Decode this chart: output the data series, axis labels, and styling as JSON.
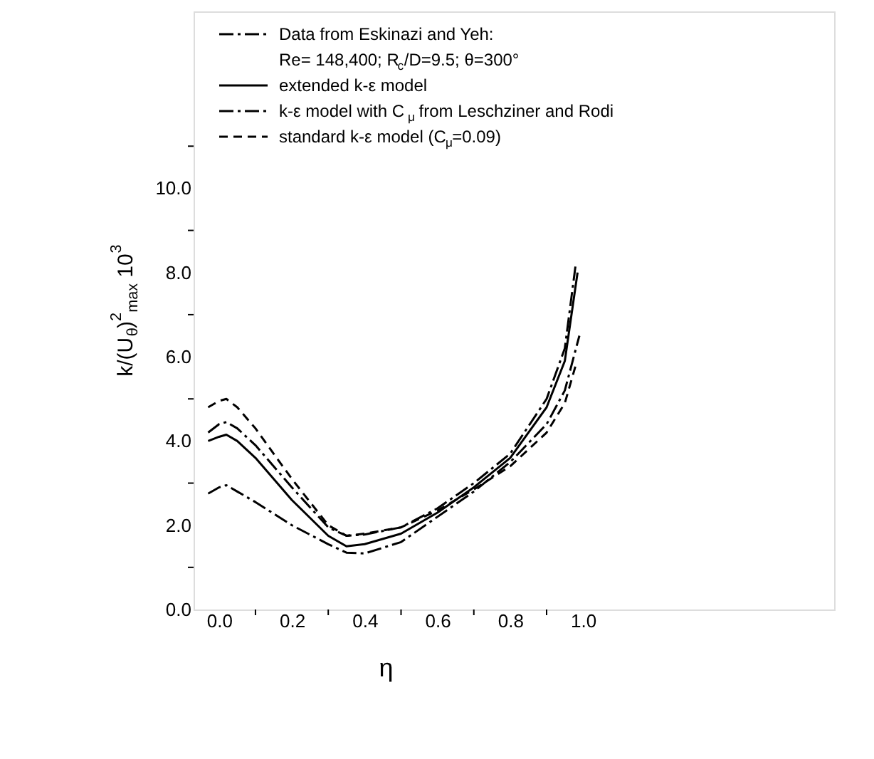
{
  "chart_data": {
    "type": "line",
    "xlabel": "η",
    "ylabel": "k/(U$_{θ}$)$^{2}$$_{max}$ 10$^{3}$",
    "xlim": [
      -0.07,
      1.69
    ],
    "ylim": [
      0,
      14.2
    ],
    "xticks": [
      {
        "value": 0,
        "label": "0.0"
      },
      {
        "value": 0.1,
        "label": null
      },
      {
        "value": 0.2,
        "label": "0.2"
      },
      {
        "value": 0.3,
        "label": null
      },
      {
        "value": 0.4,
        "label": "0.4"
      },
      {
        "value": 0.5,
        "label": null
      },
      {
        "value": 0.6,
        "label": "0.6"
      },
      {
        "value": 0.7,
        "label": null
      },
      {
        "value": 0.8,
        "label": "0.8"
      },
      {
        "value": 0.9,
        "label": null
      },
      {
        "value": 1.0,
        "label": "1.0"
      }
    ],
    "yticks": [
      {
        "value": 0,
        "label": "0.0"
      },
      {
        "value": 1,
        "label": null
      },
      {
        "value": 2,
        "label": "2.0"
      },
      {
        "value": 3,
        "label": null
      },
      {
        "value": 4,
        "label": "4.0"
      },
      {
        "value": 5,
        "label": null
      },
      {
        "value": 6,
        "label": "6.0"
      },
      {
        "value": 7,
        "label": null
      },
      {
        "value": 8,
        "label": "8.0"
      },
      {
        "value": 9,
        "label": null
      },
      {
        "value": 10,
        "label": "10.0"
      },
      {
        "value": 11,
        "label": null
      }
    ],
    "grid": false,
    "legend": "top left",
    "marker": "none",
    "series": [
      {
        "name": "Data from Eskinazi and Yeh:\nRe= 148,400; R$_{c}$/D=9.5; θ=300°",
        "color": "#000000",
        "line_style": "dashdot",
        "x": [
          -0.03,
          0,
          0.02,
          0.05,
          0.1,
          0.2,
          0.3,
          0.35,
          0.4,
          0.5,
          0.6,
          0.7,
          0.8,
          0.9,
          0.95,
          0.99
        ],
        "values": [
          2.75,
          2.9,
          2.95,
          2.8,
          2.55,
          2.0,
          1.55,
          1.35,
          1.33,
          1.6,
          2.2,
          2.8,
          3.5,
          4.4,
          5.2,
          6.5
        ]
      },
      {
        "name": "extended k-ε model",
        "color": "#000000",
        "line_style": "solid",
        "x": [
          -0.03,
          0,
          0.02,
          0.05,
          0.1,
          0.2,
          0.3,
          0.35,
          0.4,
          0.5,
          0.6,
          0.7,
          0.8,
          0.9,
          0.95,
          0.985
        ],
        "values": [
          4.0,
          4.1,
          4.15,
          4.0,
          3.6,
          2.6,
          1.75,
          1.5,
          1.55,
          1.8,
          2.3,
          2.9,
          3.6,
          4.8,
          5.9,
          8.0
        ]
      },
      {
        "name": "k-ε model with C$_{μ}$ from Leschziner and Rodi",
        "color": "#000000",
        "line_style": "dashdot",
        "x": [
          -0.03,
          0,
          0.02,
          0.05,
          0.1,
          0.2,
          0.3,
          0.35,
          0.4,
          0.5,
          0.6,
          0.7,
          0.8,
          0.9,
          0.95,
          0.98
        ],
        "values": [
          4.2,
          4.4,
          4.45,
          4.3,
          3.9,
          2.9,
          1.95,
          1.75,
          1.78,
          1.95,
          2.4,
          3.0,
          3.7,
          5.0,
          6.2,
          8.2
        ]
      },
      {
        "name": "standard k-ε model (C$_{μ}$=0.09)",
        "color": "#000000",
        "line_style": "dashed",
        "x": [
          -0.03,
          0,
          0.02,
          0.05,
          0.1,
          0.2,
          0.3,
          0.35,
          0.4,
          0.5,
          0.6,
          0.7,
          0.8,
          0.9,
          0.95,
          0.98
        ],
        "values": [
          4.8,
          4.95,
          5.0,
          4.8,
          4.3,
          3.1,
          2.0,
          1.75,
          1.8,
          1.95,
          2.35,
          2.85,
          3.4,
          4.2,
          4.9,
          5.8
        ]
      }
    ]
  }
}
